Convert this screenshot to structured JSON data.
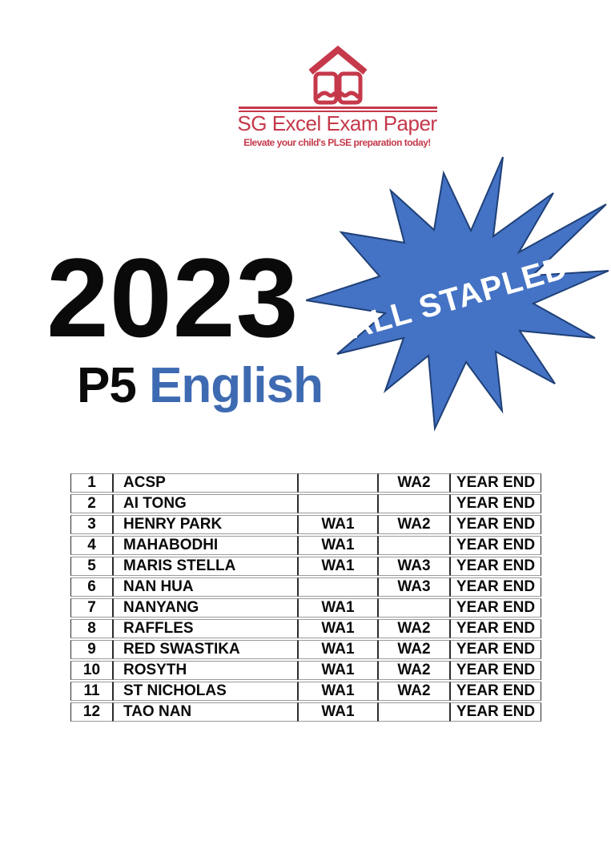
{
  "colors": {
    "brand_red": "#C5394B",
    "badge_fill": "#4472C4",
    "badge_stroke": "#1F4077",
    "subject_blue": "#3E6AB2"
  },
  "logo": {
    "brand": "SG Excel Exam Paper",
    "tagline": "Elevate your child's PLSE preparation today!",
    "icon": "open-book-with-roof-icon"
  },
  "hero": {
    "year": "2023",
    "level": "P5",
    "subject": "English"
  },
  "badge": {
    "label": "ALL STAPLED"
  },
  "table": {
    "rows": [
      {
        "num": "1",
        "school": "ACSP",
        "wa1": "",
        "wa2": "WA2",
        "year_end": "YEAR END"
      },
      {
        "num": "2",
        "school": "AI TONG",
        "wa1": "",
        "wa2": "",
        "year_end": "YEAR END"
      },
      {
        "num": "3",
        "school": "HENRY PARK",
        "wa1": "WA1",
        "wa2": "WA2",
        "year_end": "YEAR END"
      },
      {
        "num": "4",
        "school": "MAHABODHI",
        "wa1": "WA1",
        "wa2": "",
        "year_end": "YEAR END"
      },
      {
        "num": "5",
        "school": "MARIS STELLA",
        "wa1": "WA1",
        "wa2": "WA3",
        "year_end": "YEAR END"
      },
      {
        "num": "6",
        "school": "NAN HUA",
        "wa1": "",
        "wa2": "WA3",
        "year_end": "YEAR END"
      },
      {
        "num": "7",
        "school": "NANYANG",
        "wa1": "WA1",
        "wa2": "",
        "year_end": "YEAR END"
      },
      {
        "num": "8",
        "school": "RAFFLES",
        "wa1": "WA1",
        "wa2": "WA2",
        "year_end": "YEAR END"
      },
      {
        "num": "9",
        "school": "RED SWASTIKA",
        "wa1": "WA1",
        "wa2": "WA2",
        "year_end": "YEAR END"
      },
      {
        "num": "10",
        "school": "ROSYTH",
        "wa1": "WA1",
        "wa2": "WA2",
        "year_end": "YEAR END"
      },
      {
        "num": "11",
        "school": "ST NICHOLAS",
        "wa1": "WA1",
        "wa2": "WA2",
        "year_end": "YEAR END"
      },
      {
        "num": "12",
        "school": "TAO NAN",
        "wa1": "WA1",
        "wa2": "",
        "year_end": "YEAR END"
      }
    ]
  }
}
